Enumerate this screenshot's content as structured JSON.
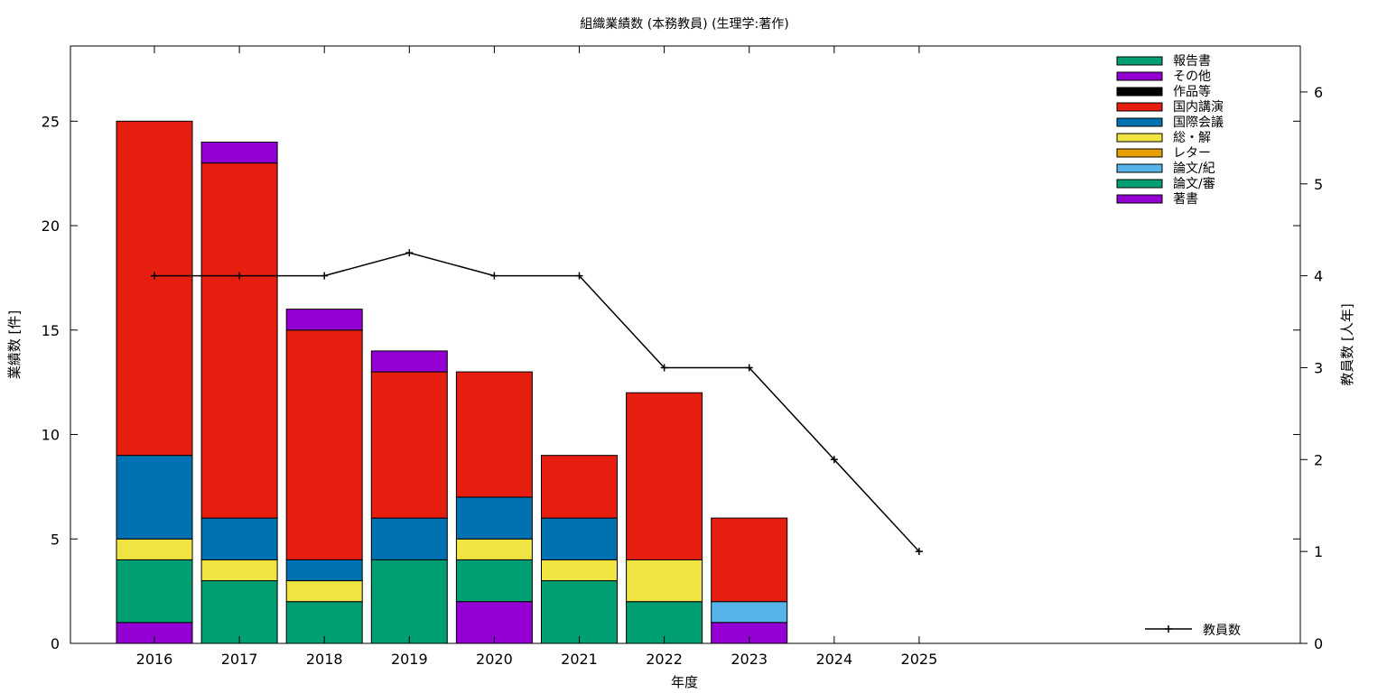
{
  "chart_data": {
    "type": "bar",
    "stacked": true,
    "title": "組織業績数 (本務教員) (生理学:著作)",
    "xlabel": "年度",
    "ylabel": "業績数 [件]",
    "y2label": "教員数 [人年]",
    "categories": [
      "2016",
      "2017",
      "2018",
      "2019",
      "2020",
      "2021",
      "2022",
      "2023",
      "2024",
      "2025"
    ],
    "ylim": [
      0,
      28.6
    ],
    "y2lim": [
      0,
      6.5
    ],
    "yticks": [
      0,
      5,
      10,
      15,
      20,
      25
    ],
    "y2ticks": [
      0,
      1,
      2,
      3,
      4,
      5,
      6
    ],
    "grid": false,
    "legend_position": "top-right",
    "series": [
      {
        "name": "著書",
        "color": "#9400d3",
        "values": [
          1,
          0,
          0,
          0,
          2,
          0,
          0,
          1,
          0,
          0
        ]
      },
      {
        "name": "論文/審",
        "color": "#009e73",
        "values": [
          3,
          3,
          2,
          4,
          2,
          3,
          2,
          0,
          0,
          0
        ]
      },
      {
        "name": "論文/紀",
        "color": "#56b4e9",
        "values": [
          0,
          0,
          0,
          0,
          0,
          0,
          0,
          1,
          0,
          0
        ]
      },
      {
        "name": "レター",
        "color": "#e69f00",
        "values": [
          0,
          0,
          0,
          0,
          0,
          0,
          0,
          0,
          0,
          0
        ]
      },
      {
        "name": "総・解",
        "color": "#f0e442",
        "values": [
          1,
          1,
          1,
          0,
          1,
          1,
          2,
          0,
          0,
          0
        ]
      },
      {
        "name": "国際会議",
        "color": "#0072b2",
        "values": [
          4,
          2,
          1,
          2,
          2,
          2,
          0,
          0,
          0,
          0
        ]
      },
      {
        "name": "国内講演",
        "color": "#e51e10",
        "values": [
          16,
          17,
          11,
          7,
          6,
          3,
          8,
          4,
          0,
          0
        ]
      },
      {
        "name": "作品等",
        "color": "#000000",
        "values": [
          0,
          0,
          0,
          0,
          0,
          0,
          0,
          0,
          0,
          0
        ]
      },
      {
        "name": "その他",
        "color": "#9400d3",
        "values": [
          0,
          1,
          1,
          1,
          0,
          0,
          0,
          0,
          0,
          0
        ]
      },
      {
        "name": "報告書",
        "color": "#009e73",
        "values": [
          0,
          0,
          0,
          0,
          0,
          0,
          0,
          0,
          0,
          0
        ]
      }
    ],
    "line_series": {
      "name": "教員数",
      "color": "#000000",
      "axis": "right",
      "values": [
        4,
        4,
        4,
        4.25,
        4,
        4,
        3,
        3,
        2,
        1
      ]
    },
    "legend_order": [
      "報告書",
      "その他",
      "作品等",
      "国内講演",
      "国際会議",
      "総・解",
      "レター",
      "論文/紀",
      "論文/審",
      "著書"
    ]
  }
}
